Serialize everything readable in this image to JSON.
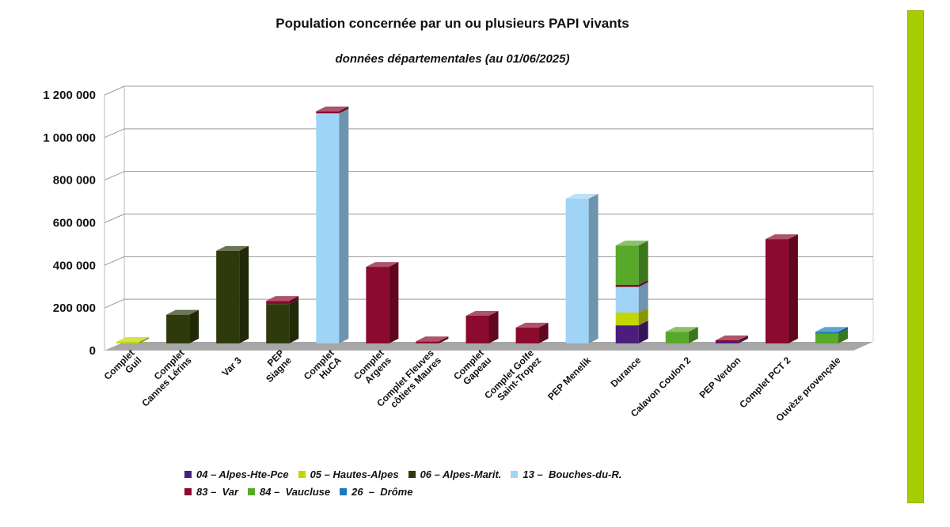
{
  "chart_data": {
    "type": "bar",
    "stacked": true,
    "three_d": true,
    "title": "Population concernée par un ou plusieurs PAPI vivants",
    "subtitle": "données départementales (au 01/06/2025)",
    "xlabel": "",
    "ylabel": "",
    "ylim": [
      0,
      1200000
    ],
    "yticks": [
      0,
      200000,
      400000,
      600000,
      800000,
      1000000,
      1200000
    ],
    "ytick_labels": [
      "0",
      "200 000",
      "400 000",
      "600 000",
      "800 000",
      "1 000 000",
      "1 200 000"
    ],
    "grid": true,
    "legend_position": "bottom",
    "categories": [
      [
        "Complet",
        "Guil"
      ],
      [
        "Complet",
        "Cannes Lérins"
      ],
      [
        "Var 3"
      ],
      [
        "PEP",
        "Siagne"
      ],
      [
        "Complet",
        "HuCA"
      ],
      [
        "Complet",
        "Argens"
      ],
      [
        "Complet Fleuves",
        "côtiers Maures"
      ],
      [
        "Complet",
        "Gapeau"
      ],
      [
        "Complet Golfe",
        "Saint-Tropez"
      ],
      [
        "PEP Menelik"
      ],
      [
        "Durance"
      ],
      [
        "Calavon Coulon 2"
      ],
      [
        "PEP Verdon"
      ],
      [
        "Complet PCT 2"
      ],
      [
        "Ouvèze provençale"
      ]
    ],
    "series": [
      {
        "name": "04 – Alpes-Hte-Pce",
        "color": "#4b1e7d",
        "values": [
          0,
          0,
          0,
          0,
          0,
          0,
          0,
          0,
          0,
          0,
          85000,
          0,
          7000,
          0,
          0
        ]
      },
      {
        "name": "05 – Hautes-Alpes",
        "color": "#c4d600",
        "values": [
          2000,
          0,
          0,
          0,
          0,
          0,
          0,
          0,
          0,
          0,
          60000,
          0,
          0,
          0,
          0
        ]
      },
      {
        "name": "06 – Alpes-Marit.",
        "color": "#2e3a0b",
        "values": [
          0,
          135000,
          435000,
          185000,
          0,
          0,
          0,
          0,
          0,
          0,
          0,
          0,
          0,
          0,
          0
        ]
      },
      {
        "name": "13 –  Bouches-du-R.",
        "color": "#9fd4f7",
        "values": [
          0,
          0,
          0,
          0,
          1080000,
          0,
          0,
          0,
          0,
          680000,
          120000,
          0,
          0,
          0,
          0
        ]
      },
      {
        "name": "83 –  Var",
        "color": "#8b0a2e",
        "values": [
          0,
          0,
          0,
          15000,
          10000,
          360000,
          10000,
          130000,
          75000,
          0,
          10000,
          0,
          8000,
          490000,
          0
        ]
      },
      {
        "name": "84 –  Vaucluse",
        "color": "#58a82a",
        "values": [
          0,
          0,
          0,
          0,
          0,
          0,
          0,
          0,
          0,
          0,
          185000,
          55000,
          0,
          0,
          45000
        ]
      },
      {
        "name": "26  –  Drôme",
        "color": "#1a7bbd",
        "values": [
          0,
          0,
          0,
          0,
          0,
          0,
          0,
          0,
          0,
          0,
          0,
          0,
          0,
          0,
          10000
        ]
      }
    ]
  }
}
